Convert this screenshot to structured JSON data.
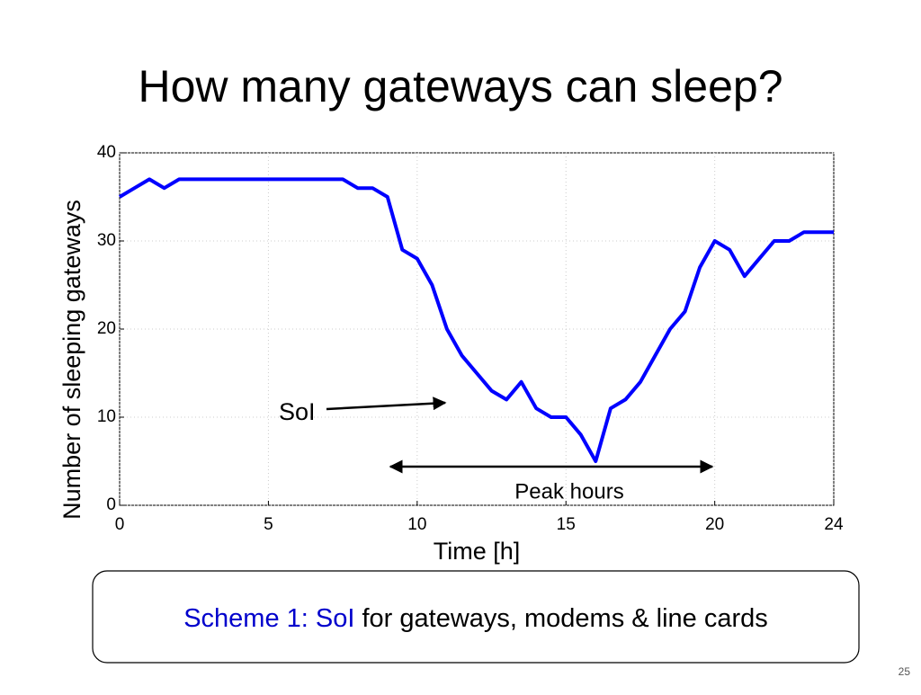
{
  "slide": {
    "title": "How many gateways can sleep?",
    "scheme_label": "Scheme 1: SoI",
    "scheme_text": "for gateways, modems & line cards",
    "page_number": 25
  },
  "chart_data": {
    "type": "line",
    "x_label": "Time [h]",
    "y_label": "Number of sleeping gateways",
    "annotations": [
      "SoI",
      "Peak hours"
    ],
    "x": [
      0,
      0.5,
      1,
      1.5,
      2,
      2.5,
      3,
      3.5,
      4,
      4.5,
      5,
      5.5,
      6,
      6.5,
      7,
      7.5,
      8,
      8.5,
      9,
      9.5,
      10,
      10.5,
      11,
      11.5,
      12,
      12.5,
      13,
      13.5,
      14,
      14.5,
      15,
      15.5,
      16,
      16.5,
      17,
      17.5,
      18,
      18.5,
      19,
      19.5,
      20,
      20.5,
      21,
      21.5,
      22,
      22.5,
      23,
      23.5,
      24
    ],
    "series": [
      {
        "name": "Sleeping gateways",
        "color": "#0000ff",
        "values": [
          35,
          36,
          37,
          36,
          37,
          37,
          37,
          37,
          37,
          37,
          37,
          37,
          37,
          37,
          37,
          37,
          36,
          36,
          35,
          29,
          28,
          25,
          20,
          17,
          15,
          13,
          12,
          14,
          11,
          10,
          10,
          8,
          5,
          11,
          12,
          14,
          17,
          20,
          22,
          27,
          30,
          29,
          26,
          28,
          30,
          30,
          31,
          31,
          31
        ]
      }
    ],
    "xlim": [
      0,
      24
    ],
    "xticks": [
      0,
      5,
      10,
      15,
      20,
      24
    ],
    "ylim": [
      0,
      40
    ],
    "yticks": [
      0,
      10,
      20,
      30,
      40
    ],
    "grid": true
  }
}
